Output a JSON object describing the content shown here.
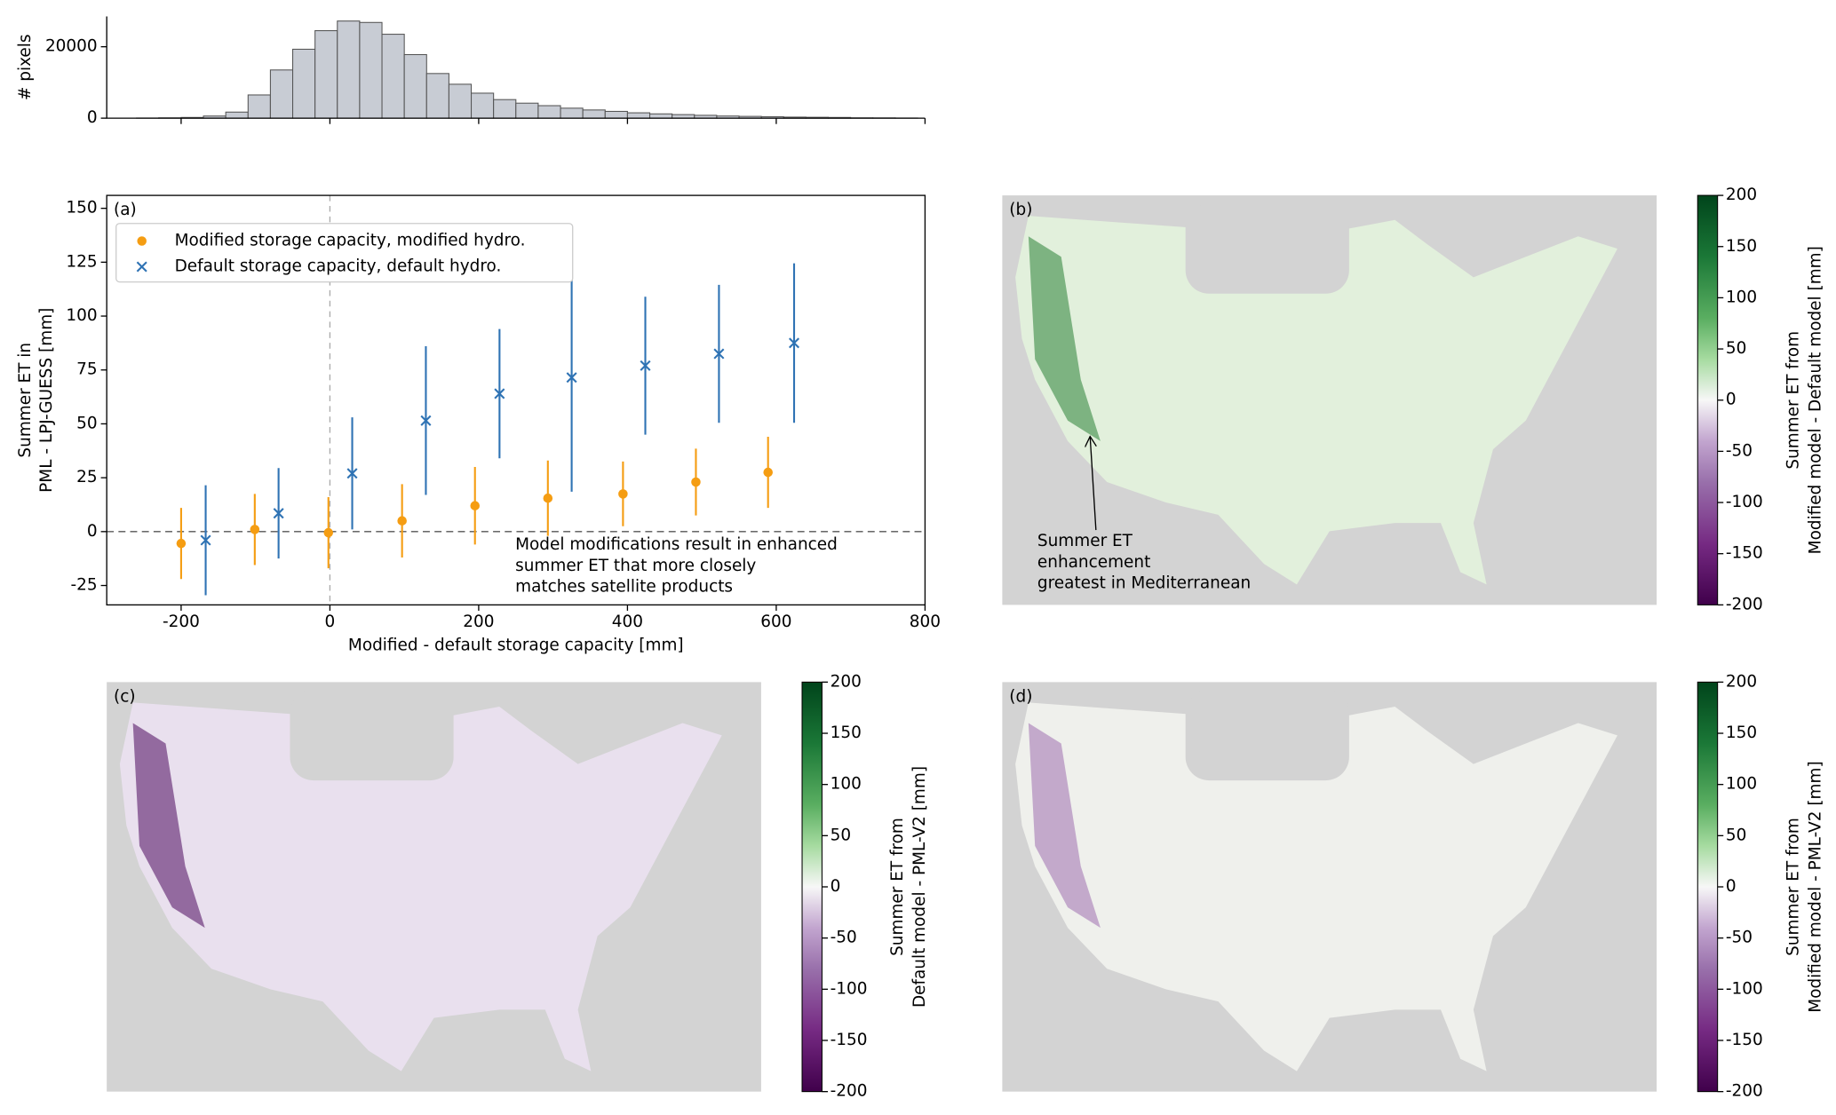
{
  "chart_data": [
    {
      "type": "histogram",
      "ylabel": "# pixels",
      "color": "#c8ccd4",
      "bins": [
        -260,
        -230,
        -200,
        -170,
        -140,
        -110,
        -80,
        -50,
        -20,
        10,
        40,
        70,
        100,
        130,
        160,
        190,
        220,
        250,
        280,
        310,
        340,
        370,
        400,
        430,
        460,
        490,
        520,
        550,
        580,
        610,
        640,
        670,
        700,
        730,
        760,
        790
      ],
      "counts": [
        50,
        100,
        200,
        600,
        1700,
        6500,
        13500,
        19300,
        24500,
        27200,
        26800,
        23500,
        17800,
        12500,
        9500,
        7000,
        5200,
        4200,
        3500,
        2800,
        2300,
        1900,
        1500,
        1200,
        1000,
        800,
        600,
        500,
        400,
        300,
        250,
        200,
        100,
        80,
        50
      ],
      "xlim": [
        -300,
        800
      ],
      "xticks": [
        -200,
        0,
        200,
        400,
        600,
        800
      ],
      "ylim": [
        0,
        28500
      ],
      "yticks": [
        0,
        20000
      ]
    },
    {
      "type": "errorbar",
      "panel": "(a)",
      "xlabel": "Modified - default storage capacity [mm]",
      "ylabel": [
        "Summer ET in",
        "PML - LPJ-GUESS [mm]"
      ],
      "xlim": [
        -300,
        800
      ],
      "xticks": [
        -200,
        0,
        200,
        400,
        600,
        800
      ],
      "ylim": [
        -34,
        156
      ],
      "yticks": [
        -25,
        0,
        25,
        50,
        75,
        100,
        125,
        150
      ],
      "legend": "upper left",
      "annotation": [
        "Model modifications result in enhanced",
        "summer ET that more closely",
        "matches satellite products"
      ],
      "series": [
        {
          "name": "Modified storage capacity, modified hydro.",
          "color": "#f59d12",
          "marker": "o",
          "x": [
            -200,
            -101,
            -2,
            97,
            195,
            293,
            394,
            492,
            589
          ],
          "values": [
            -5.5,
            1,
            -0.5,
            5,
            12,
            15.5,
            17.5,
            23,
            27.5
          ],
          "errors": [
            16.5,
            16.5,
            16.5,
            17,
            18,
            17.5,
            15,
            15.5,
            16.5
          ]
        },
        {
          "name": "Default storage capacity, default hydro.",
          "color": "#2f73b4",
          "marker": "x",
          "x": [
            -167,
            -69,
            30,
            129,
            228,
            325,
            424,
            523,
            624
          ],
          "values": [
            -4,
            8.5,
            27,
            51.5,
            64,
            71.5,
            77,
            82.5,
            87.5
          ],
          "errors": [
            25.5,
            21,
            26,
            34.5,
            30,
            53,
            32,
            32,
            37
          ]
        }
      ]
    },
    {
      "type": "map",
      "panel": "(b)",
      "tint": "#e2f0dc",
      "accent": "#3a8a45",
      "annotation": [
        "Summer ET",
        "enhancement",
        "greatest in Mediterranean"
      ],
      "colorbar_label": [
        "Summer ET from",
        "Modified model - Default model [mm]"
      ],
      "clim": [
        -200,
        200
      ],
      "cticks": [
        -200,
        -150,
        -100,
        -50,
        0,
        50,
        100,
        150,
        200
      ]
    },
    {
      "type": "map",
      "panel": "(c)",
      "tint": "#e9e0ee",
      "accent": "#5a1a6a",
      "colorbar_label": [
        "Summer ET from",
        "Default model - PML-V2 [mm]"
      ],
      "clim": [
        -200,
        200
      ],
      "cticks": [
        -200,
        -150,
        -100,
        -50,
        0,
        50,
        100,
        150,
        200
      ]
    },
    {
      "type": "map",
      "panel": "(d)",
      "tint": "#eff0ec",
      "accent": "#a57ab5",
      "colorbar_label": [
        "Summer ET from",
        "Modified model - PML-V2 [mm]"
      ],
      "clim": [
        -200,
        200
      ],
      "cticks": [
        -200,
        -150,
        -100,
        -50,
        0,
        50,
        100,
        150,
        200
      ]
    }
  ]
}
